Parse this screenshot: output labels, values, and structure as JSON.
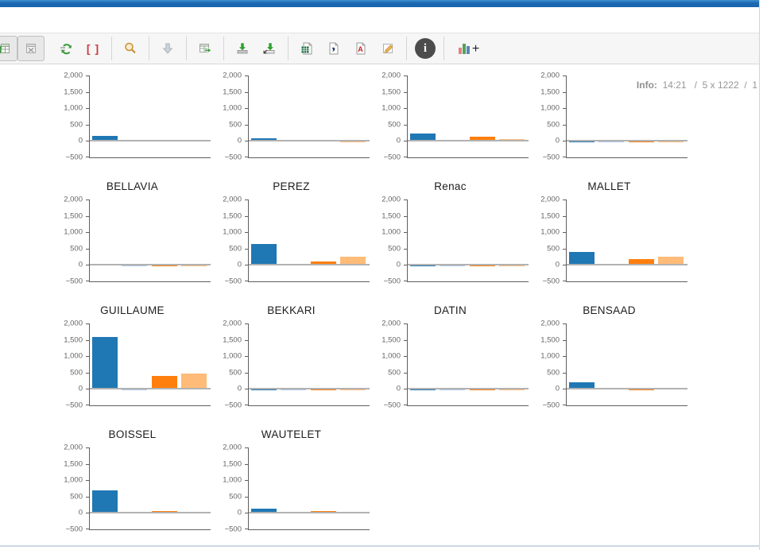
{
  "info": {
    "label": "Info:",
    "value": "  14:21   /  5 x 1222  /  1"
  },
  "toolbar": {
    "glyphs": {
      "brackets": "[ ]",
      "info": "i",
      "plus": "+",
      "pdf": "A"
    },
    "icons": [
      {
        "name": "table-chart-view",
        "pressed": true,
        "disabled": false
      },
      {
        "name": "table-view-disabled",
        "pressed": true,
        "disabled": true
      },
      {
        "name": "refresh",
        "pressed": false,
        "disabled": false
      },
      {
        "name": "format-brackets",
        "pressed": false,
        "disabled": false
      },
      {
        "name": "zoom-search",
        "pressed": false,
        "disabled": false
      },
      {
        "name": "download-disabled",
        "pressed": false,
        "disabled": true
      },
      {
        "name": "table-export",
        "pressed": false,
        "disabled": false
      },
      {
        "name": "save",
        "pressed": false,
        "disabled": false
      },
      {
        "name": "save-as",
        "pressed": false,
        "disabled": false
      },
      {
        "name": "export-excel",
        "pressed": false,
        "disabled": false
      },
      {
        "name": "export-doc",
        "pressed": false,
        "disabled": false
      },
      {
        "name": "export-pdf",
        "pressed": false,
        "disabled": false
      },
      {
        "name": "edit-sign",
        "pressed": false,
        "disabled": false
      },
      {
        "name": "info",
        "pressed": false,
        "disabled": false
      },
      {
        "name": "add-chart",
        "pressed": false,
        "disabled": false
      }
    ]
  },
  "chart_data": {
    "type": "bar",
    "series_colors": [
      "#1f77b4",
      "#aec7e8",
      "#ff7f0e",
      "#ffbb78"
    ],
    "ylim": [
      -500,
      2000
    ],
    "yticks": [
      2000,
      1500,
      1000,
      500,
      0,
      -500
    ],
    "ytick_labels": [
      "2,000",
      "1,500",
      "1,000",
      "500",
      "0",
      "−500"
    ],
    "grid": "off",
    "legend": "none",
    "charts": [
      {
        "title": "",
        "values": [
          165,
          5,
          10,
          5
        ]
      },
      {
        "title": "",
        "values": [
          85,
          5,
          35,
          -10
        ]
      },
      {
        "title": "",
        "values": [
          240,
          10,
          140,
          60
        ]
      },
      {
        "title": "",
        "values": [
          -15,
          -5,
          -20,
          -8
        ]
      },
      {
        "title": "BELLAVIA",
        "values": [
          35,
          -5,
          -25,
          -10
        ]
      },
      {
        "title": "PEREZ",
        "values": [
          630,
          5,
          110,
          260
        ]
      },
      {
        "title": "Renac",
        "values": [
          -20,
          -8,
          -25,
          -10
        ]
      },
      {
        "title": "MALLET",
        "values": [
          410,
          8,
          190,
          260
        ]
      },
      {
        "title": "GUILLAUME",
        "values": [
          1580,
          -8,
          390,
          460
        ]
      },
      {
        "title": "BEKKARI",
        "values": [
          -15,
          -5,
          -20,
          -10
        ]
      },
      {
        "title": "DATIN",
        "values": [
          -15,
          -5,
          -30,
          -12
        ]
      },
      {
        "title": "BENSAAD",
        "values": [
          210,
          5,
          -25,
          30
        ]
      },
      {
        "title": "BOISSEL",
        "values": [
          680,
          8,
          50,
          15
        ]
      },
      {
        "title": "WAUTELET",
        "values": [
          120,
          5,
          50,
          10
        ]
      }
    ]
  }
}
